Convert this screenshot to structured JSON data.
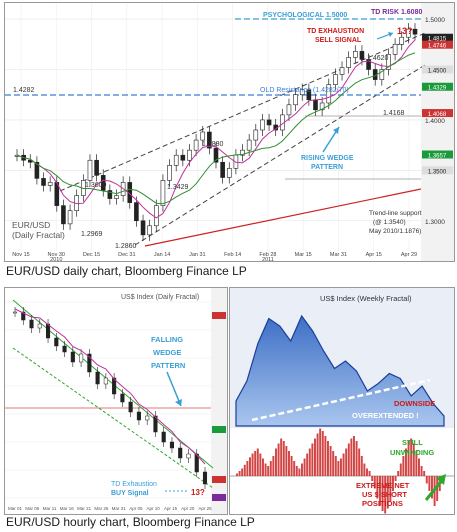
{
  "captions": {
    "top": "EUR/USD daily chart, Bloomberg Finance LP",
    "bottom": "EUR/USD hourly chart, Bloomberg Finance LP"
  },
  "chart_data": [
    {
      "type": "line",
      "title": "EUR/USD (Daily Fractal)",
      "x_ticks": [
        "Nov 15",
        "Nov 30\n2010",
        "Dec 15",
        "Dec 31",
        "Jan 14",
        "Jan 31",
        "Feb 14",
        "Feb 28\n2011",
        "Mar 15",
        "Mar 31",
        "Apr 15",
        "Apr 29"
      ],
      "y_ticks": [
        "1.5000",
        "1.4500",
        "1.4000",
        "1.3500",
        "1.3000"
      ],
      "ylim": [
        1.27,
        1.51
      ],
      "series": [
        {
          "values": [
            1.365,
            1.36,
            1.358,
            1.342,
            1.335,
            1.338,
            1.315,
            1.2969,
            1.31,
            1.325,
            1.34,
            1.36,
            1.345,
            1.33,
            1.322,
            1.325,
            1.338,
            1.318,
            1.3,
            1.286,
            1.295,
            1.315,
            1.34,
            1.355,
            1.365,
            1.36,
            1.37,
            1.38,
            1.388,
            1.372,
            1.358,
            1.3429,
            1.352,
            1.365,
            1.37,
            1.38,
            1.39,
            1.4,
            1.395,
            1.39,
            1.405,
            1.415,
            1.425,
            1.43,
            1.42,
            1.41,
            1.4168,
            1.435,
            1.445,
            1.452,
            1.462,
            1.468,
            1.46,
            1.45,
            1.44,
            1.45,
            1.465,
            1.475,
            1.482,
            1.49,
            1.485
          ]
        }
      ],
      "annotations": {
        "psychological": "PSYCHOLOGICAL 1.5000",
        "td_risk": "TD RISK 1.6080",
        "exhaustion": "TD EXHAUSTION",
        "sell": "SELL SIGNAL",
        "thirteen": "13?",
        "old_resistance": "OLD Resistance (1.4282/70)",
        "wedge1": "RISING WEDGE",
        "wedge2": "PATTERN",
        "support1": "Trend-line support",
        "support2": "(@ 1.3540)",
        "support3": "May 2010/1.1876)",
        "label": "EUR/USD\n(Daily Fractal)",
        "levels": [
          "1.4282",
          "1.4620",
          "1.4168",
          "1.3880",
          "1.3600",
          "1.3429",
          "1.2969",
          "1.2860"
        ]
      },
      "right_tags": [
        "1.4815",
        "1.4746",
        "1.4500",
        "1.4329",
        "1.4068",
        "1.3657",
        "1.3500"
      ]
    },
    {
      "type": "line",
      "title": "",
      "x_ticks": [
        "Mar 01",
        "Mar 06",
        "Mar 11",
        "Mar 16",
        "Mar 21",
        "Mar 26",
        "Mar 31",
        "Apr 05",
        "Apr 10",
        "Apr 15",
        "Apr 20",
        "Apr 25"
      ],
      "series": [
        {
          "values": [
            84.0,
            83.6,
            83.2,
            83.4,
            82.7,
            82.3,
            82.0,
            81.5,
            81.9,
            81.0,
            80.4,
            80.7,
            79.9,
            79.5,
            79.0,
            78.6,
            78.8,
            78.0,
            77.5,
            77.2,
            76.7,
            76.9,
            76.0,
            75.4
          ]
        }
      ],
      "annotations": {
        "label": "US$ Index (Daily Fractal)",
        "wedge1": "FALLING",
        "wedge2": "WEDGE",
        "wedge3": "PATTERN",
        "td": "TD Exhaustion",
        "buy": "BUY Signal",
        "thirteen": "13?"
      }
    },
    {
      "type": "area",
      "title": "US$ Index (Weekly Fractal)",
      "series": [
        {
          "values": [
            72,
            80,
            95,
            105,
            102,
            96,
            106,
            100,
            92,
            85,
            88,
            84,
            76,
            79,
            83,
            81,
            74,
            78,
            71,
            66
          ]
        }
      ],
      "annotations": {
        "downside": "DOWNSIDE",
        "overextended": "OVEREXTENDED !"
      }
    },
    {
      "type": "bar",
      "title": "",
      "annotations": {
        "still": "STILL",
        "unwinding": "UNWINDING",
        "extreme1": "EXTREME NET",
        "extreme2": "US $ SHORT",
        "extreme3": "POSITIONS"
      }
    }
  ]
}
